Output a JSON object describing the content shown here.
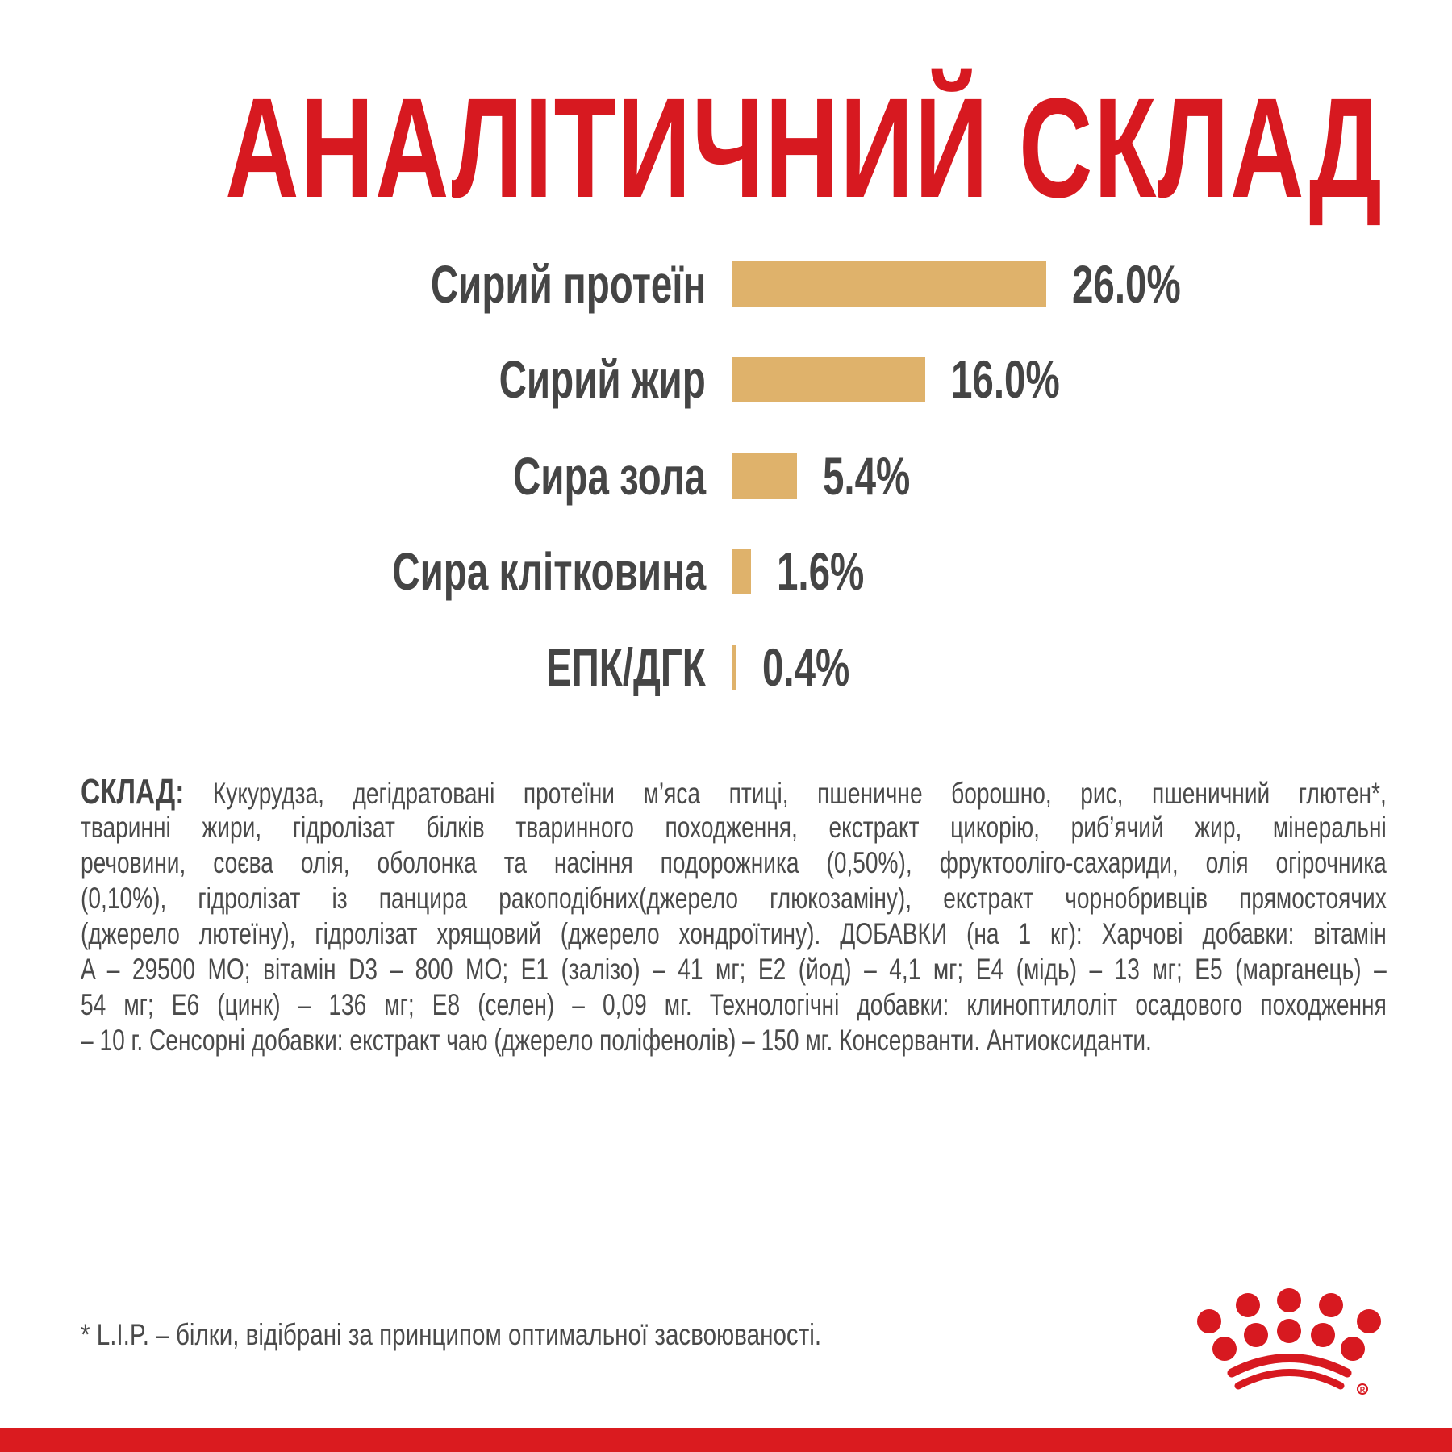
{
  "title": "АНАЛІТИЧНИЙ СКЛАД",
  "colors": {
    "accent": "#d71920",
    "bar": "#dfb26b",
    "text": "#454545"
  },
  "chart_data": {
    "type": "bar",
    "orientation": "horizontal",
    "categories": [
      "Сирий протеїн",
      "Сирий жир",
      "Сира зола",
      "Сира клітковина",
      "ЕПК/ДГК"
    ],
    "values": [
      26.0,
      16.0,
      5.4,
      1.6,
      0.4
    ],
    "labels": [
      "26.0%",
      "16.0%",
      "5.4%",
      "1.6%",
      "0.4%"
    ],
    "unit": "%",
    "grid": false
  },
  "composition": {
    "lead": "СКЛАД:",
    "lines": [
      "Кукурудза, дегідратовані протеїни м’яса птиці, пшеничне борошно, рис, пшеничний глютен*,",
      "тваринні жири, гідролізат білків тваринного походження, екстракт цикорію, риб’ячий жир, мінеральні",
      "речовини, соєва олія, оболонка та насіння подорожника (0,50%), фруктооліго-сахариди, олія огірочника",
      "(0,10%), гідролізат із панцира ракоподібних(джерело глюкозаміну), екстракт чорнобривців прямостоячих",
      "(джерело лютеїну), гідролізат хрящовий (джерело хондроїтину). ДОБАВКИ (на 1 кг): Харчові добавки: вітамін",
      "A – 29500 МО; вітамін D3 – 800 МО; E1 (залізо) – 41 мг; E2 (йод) – 4,1 мг; E4 (мідь) – 13 мг; E5 (марганець) –",
      "54 мг; E6 (цинк) – 136 мг; E8 (селен) – 0,09 мг. Технологічні добавки: клиноптилоліт осадового походження",
      "– 10 г. Сенсорні добавки: екстракт чаю (джерело поліфенолів) – 150 мг. Консерванти. Антиоксиданти."
    ]
  },
  "footnote": "* L.I.P. – білки, відібрані за принципом оптимальної засвоюваності.",
  "logo": {
    "name": "royal-canin-crown-logo",
    "mark": "®"
  }
}
